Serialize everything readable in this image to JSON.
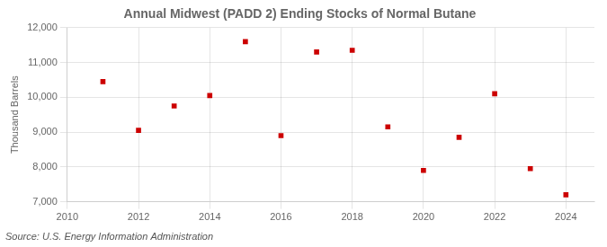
{
  "chart_data": {
    "type": "scatter",
    "title": "Annual Midwest (PADD 2) Ending Stocks of Normal Butane",
    "ylabel": "Thousand Barrels",
    "source": "Source: U.S. Energy Information Administration",
    "x": [
      2011,
      2012,
      2013,
      2014,
      2015,
      2016,
      2017,
      2018,
      2019,
      2020,
      2021,
      2022,
      2023,
      2024
    ],
    "values": [
      10450,
      9050,
      9750,
      10050,
      11600,
      8900,
      11300,
      11350,
      9150,
      7900,
      8850,
      10100,
      7950,
      7200
    ],
    "color": "#cc0000",
    "marker": "square",
    "xlim": [
      2010,
      2024.8
    ],
    "xticks": [
      2010,
      2012,
      2014,
      2016,
      2018,
      2020,
      2022,
      2024
    ],
    "ylim": [
      7000,
      12000
    ],
    "yticks": [
      {
        "value": 7000,
        "label": "7,000"
      },
      {
        "value": 8000,
        "label": "8,000"
      },
      {
        "value": 9000,
        "label": "9,000"
      },
      {
        "value": 10000,
        "label": "10,000"
      },
      {
        "value": 11000,
        "label": "11,000"
      },
      {
        "value": 12000,
        "label": "12,000"
      }
    ],
    "grid": true
  }
}
